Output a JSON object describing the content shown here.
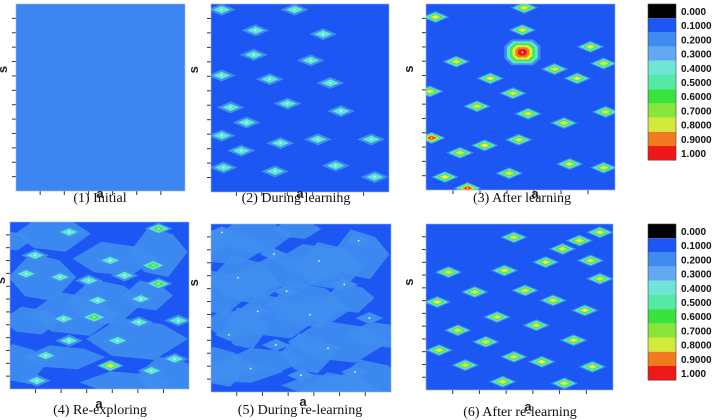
{
  "colors": {
    "background": "#1c56f3",
    "initial_fill": "#3d86f2",
    "mid": "#3f8ef0",
    "cyan": "#5ee8d2",
    "green": "#46e84a",
    "yellow": "#e6f030",
    "orange": "#f07a20",
    "red": "#ee1818"
  },
  "legend": {
    "ticks": [
      "0.000",
      "0.1000",
      "0.2000",
      "0.3000",
      "0.4000",
      "0.5000",
      "0.6000",
      "0.7000",
      "0.8000",
      "0.9000",
      "1.000"
    ],
    "colors": [
      "#000000",
      "#1c56f3",
      "#3e8cf2",
      "#63a9f2",
      "#6fe5d6",
      "#55e9a8",
      "#37e33c",
      "#8ae53a",
      "#d4ea3a",
      "#f07a20",
      "#ee1818"
    ]
  },
  "chart_data": [
    {
      "type": "heatmap",
      "caption": "(1) Initial",
      "xlabel": "a",
      "ylabel": "s",
      "peaks": []
    },
    {
      "type": "heatmap",
      "caption": "(2) During learning",
      "xlabel": "a",
      "ylabel": "s",
      "peaks": [
        {
          "x": 0.06,
          "y": 0.03,
          "v": 0.25
        },
        {
          "x": 0.47,
          "y": 0.03,
          "v": 0.25
        },
        {
          "x": 0.25,
          "y": 0.14,
          "v": 0.25
        },
        {
          "x": 0.63,
          "y": 0.16,
          "v": 0.25
        },
        {
          "x": 0.24,
          "y": 0.27,
          "v": 0.35
        },
        {
          "x": 0.56,
          "y": 0.3,
          "v": 0.25
        },
        {
          "x": 0.06,
          "y": 0.38,
          "v": 0.25
        },
        {
          "x": 0.33,
          "y": 0.4,
          "v": 0.25
        },
        {
          "x": 0.67,
          "y": 0.42,
          "v": 0.25
        },
        {
          "x": 0.43,
          "y": 0.53,
          "v": 0.35
        },
        {
          "x": 0.11,
          "y": 0.55,
          "v": 0.25
        },
        {
          "x": 0.2,
          "y": 0.63,
          "v": 0.25
        },
        {
          "x": 0.73,
          "y": 0.57,
          "v": 0.25
        },
        {
          "x": 0.06,
          "y": 0.7,
          "v": 0.25
        },
        {
          "x": 0.39,
          "y": 0.74,
          "v": 0.25
        },
        {
          "x": 0.17,
          "y": 0.78,
          "v": 0.25
        },
        {
          "x": 0.6,
          "y": 0.72,
          "v": 0.25
        },
        {
          "x": 0.9,
          "y": 0.72,
          "v": 0.25
        },
        {
          "x": 0.07,
          "y": 0.87,
          "v": 0.25
        },
        {
          "x": 0.36,
          "y": 0.89,
          "v": 0.25
        },
        {
          "x": 0.7,
          "y": 0.86,
          "v": 0.25
        },
        {
          "x": 0.92,
          "y": 0.92,
          "v": 0.25
        }
      ]
    },
    {
      "type": "heatmap",
      "caption": "(3) After learning",
      "xlabel": "a",
      "ylabel": "s",
      "peaks": [
        {
          "x": 0.52,
          "y": 0.02,
          "v": 0.7
        },
        {
          "x": 0.05,
          "y": 0.07,
          "v": 0.7
        },
        {
          "x": 0.51,
          "y": 0.14,
          "v": 0.7
        },
        {
          "x": 0.51,
          "y": 0.26,
          "v": 1.0
        },
        {
          "x": 0.87,
          "y": 0.23,
          "v": 0.7
        },
        {
          "x": 0.94,
          "y": 0.32,
          "v": 0.7
        },
        {
          "x": 0.16,
          "y": 0.31,
          "v": 0.7
        },
        {
          "x": 0.68,
          "y": 0.35,
          "v": 0.7
        },
        {
          "x": 0.8,
          "y": 0.4,
          "v": 0.7
        },
        {
          "x": 0.34,
          "y": 0.4,
          "v": 0.7
        },
        {
          "x": 0.02,
          "y": 0.47,
          "v": 0.7
        },
        {
          "x": 0.46,
          "y": 0.48,
          "v": 0.7
        },
        {
          "x": 0.27,
          "y": 0.55,
          "v": 0.7
        },
        {
          "x": 0.54,
          "y": 0.59,
          "v": 0.7
        },
        {
          "x": 0.95,
          "y": 0.58,
          "v": 0.7
        },
        {
          "x": 0.73,
          "y": 0.64,
          "v": 0.7
        },
        {
          "x": 0.03,
          "y": 0.72,
          "v": 0.95
        },
        {
          "x": 0.49,
          "y": 0.73,
          "v": 0.7
        },
        {
          "x": 0.31,
          "y": 0.76,
          "v": 0.7
        },
        {
          "x": 0.18,
          "y": 0.8,
          "v": 0.7
        },
        {
          "x": 0.76,
          "y": 0.86,
          "v": 0.7
        },
        {
          "x": 0.94,
          "y": 0.88,
          "v": 0.7
        },
        {
          "x": 0.44,
          "y": 0.91,
          "v": 0.7
        },
        {
          "x": 0.1,
          "y": 0.93,
          "v": 0.7
        },
        {
          "x": 0.22,
          "y": 0.99,
          "v": 1.0
        }
      ]
    },
    {
      "type": "heatmap",
      "caption": "(4) Re-exploring",
      "xlabel": "a",
      "ylabel": "s",
      "peaks": [
        {
          "x": 0.33,
          "y": 0.06,
          "v": 0.3
        },
        {
          "x": 0.83,
          "y": 0.04,
          "v": 0.45
        },
        {
          "x": 0.14,
          "y": 0.2,
          "v": 0.3
        },
        {
          "x": 0.56,
          "y": 0.23,
          "v": 0.3
        },
        {
          "x": 0.8,
          "y": 0.26,
          "v": 0.45
        },
        {
          "x": 0.09,
          "y": 0.31,
          "v": 0.3
        },
        {
          "x": 0.44,
          "y": 0.35,
          "v": 0.3
        },
        {
          "x": 0.28,
          "y": 0.33,
          "v": 0.3
        },
        {
          "x": 0.64,
          "y": 0.32,
          "v": 0.3
        },
        {
          "x": 0.83,
          "y": 0.37,
          "v": 0.5
        },
        {
          "x": 0.49,
          "y": 0.47,
          "v": 0.3
        },
        {
          "x": 0.73,
          "y": 0.46,
          "v": 0.3
        },
        {
          "x": 0.47,
          "y": 0.57,
          "v": 0.55
        },
        {
          "x": 0.3,
          "y": 0.58,
          "v": 0.3
        },
        {
          "x": 0.72,
          "y": 0.6,
          "v": 0.3
        },
        {
          "x": 0.94,
          "y": 0.59,
          "v": 0.3
        },
        {
          "x": 0.33,
          "y": 0.71,
          "v": 0.4
        },
        {
          "x": 0.6,
          "y": 0.71,
          "v": 0.3
        },
        {
          "x": 0.2,
          "y": 0.8,
          "v": 0.3
        },
        {
          "x": 0.56,
          "y": 0.86,
          "v": 0.75
        },
        {
          "x": 0.79,
          "y": 0.89,
          "v": 0.4
        },
        {
          "x": 0.15,
          "y": 0.95,
          "v": 0.3
        },
        {
          "x": 0.92,
          "y": 0.82,
          "v": 0.3
        }
      ]
    },
    {
      "type": "heatmap",
      "caption": "(5) During re-learning",
      "xlabel": "a",
      "ylabel": "s",
      "peaks": [
        {
          "x": 0.06,
          "y": 0.05,
          "v": 0.2
        },
        {
          "x": 0.82,
          "y": 0.1,
          "v": 0.22
        },
        {
          "x": 0.35,
          "y": 0.18,
          "v": 0.2
        },
        {
          "x": 0.6,
          "y": 0.22,
          "v": 0.2
        },
        {
          "x": 0.15,
          "y": 0.32,
          "v": 0.2
        },
        {
          "x": 0.42,
          "y": 0.4,
          "v": 0.22
        },
        {
          "x": 0.74,
          "y": 0.36,
          "v": 0.2
        },
        {
          "x": 0.26,
          "y": 0.52,
          "v": 0.2
        },
        {
          "x": 0.55,
          "y": 0.54,
          "v": 0.2
        },
        {
          "x": 0.88,
          "y": 0.56,
          "v": 0.2
        },
        {
          "x": 0.1,
          "y": 0.66,
          "v": 0.2
        },
        {
          "x": 0.36,
          "y": 0.72,
          "v": 0.2
        },
        {
          "x": 0.65,
          "y": 0.74,
          "v": 0.2
        },
        {
          "x": 0.22,
          "y": 0.86,
          "v": 0.2
        },
        {
          "x": 0.5,
          "y": 0.9,
          "v": 0.2
        },
        {
          "x": 0.8,
          "y": 0.88,
          "v": 0.2
        }
      ]
    },
    {
      "type": "heatmap",
      "caption": "(6) After re-learning",
      "xlabel": "a",
      "ylabel": "s",
      "peaks": [
        {
          "x": 0.93,
          "y": 0.05,
          "v": 0.7
        },
        {
          "x": 0.82,
          "y": 0.1,
          "v": 0.7
        },
        {
          "x": 0.47,
          "y": 0.08,
          "v": 0.7
        },
        {
          "x": 0.73,
          "y": 0.15,
          "v": 0.7
        },
        {
          "x": 0.88,
          "y": 0.22,
          "v": 0.7
        },
        {
          "x": 0.12,
          "y": 0.29,
          "v": 0.7
        },
        {
          "x": 0.42,
          "y": 0.28,
          "v": 0.7
        },
        {
          "x": 0.64,
          "y": 0.23,
          "v": 0.7
        },
        {
          "x": 0.93,
          "y": 0.33,
          "v": 0.7
        },
        {
          "x": 0.53,
          "y": 0.4,
          "v": 0.7
        },
        {
          "x": 0.26,
          "y": 0.41,
          "v": 0.7
        },
        {
          "x": 0.06,
          "y": 0.47,
          "v": 0.7
        },
        {
          "x": 0.68,
          "y": 0.46,
          "v": 0.7
        },
        {
          "x": 0.85,
          "y": 0.52,
          "v": 0.7
        },
        {
          "x": 0.38,
          "y": 0.56,
          "v": 0.7
        },
        {
          "x": 0.17,
          "y": 0.64,
          "v": 0.7
        },
        {
          "x": 0.59,
          "y": 0.61,
          "v": 0.7
        },
        {
          "x": 0.32,
          "y": 0.71,
          "v": 0.7
        },
        {
          "x": 0.79,
          "y": 0.7,
          "v": 0.7
        },
        {
          "x": 0.07,
          "y": 0.76,
          "v": 0.7
        },
        {
          "x": 0.47,
          "y": 0.8,
          "v": 0.7
        },
        {
          "x": 0.21,
          "y": 0.85,
          "v": 0.7
        },
        {
          "x": 0.62,
          "y": 0.83,
          "v": 0.7
        },
        {
          "x": 0.89,
          "y": 0.86,
          "v": 0.7
        },
        {
          "x": 0.41,
          "y": 0.95,
          "v": 0.7
        },
        {
          "x": 0.74,
          "y": 0.96,
          "v": 0.7
        }
      ]
    }
  ]
}
